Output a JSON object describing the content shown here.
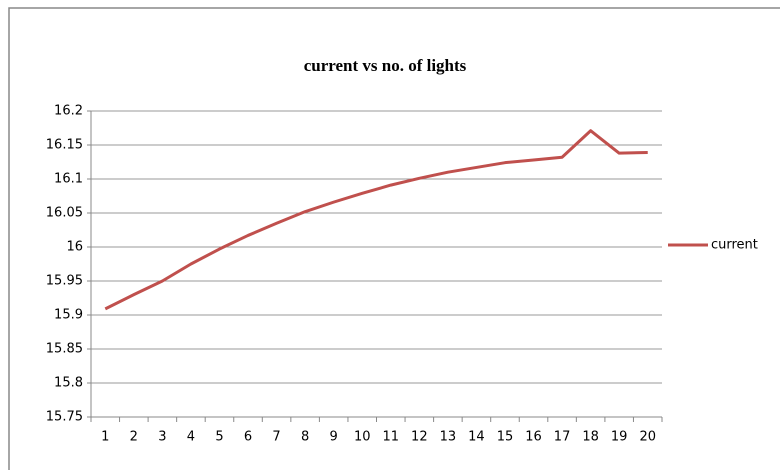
{
  "chart_data": {
    "type": "line",
    "title": "current vs no. of lights",
    "categories": [
      "1",
      "2",
      "3",
      "4",
      "5",
      "6",
      "7",
      "8",
      "9",
      "10",
      "11",
      "12",
      "13",
      "14",
      "15",
      "16",
      "17",
      "18",
      "19",
      "20"
    ],
    "series": [
      {
        "name": "current",
        "color": "#c0504d",
        "values": [
          15.909,
          15.93,
          15.95,
          15.975,
          15.997,
          16.017,
          16.035,
          16.052,
          16.066,
          16.079,
          16.091,
          16.101,
          16.11,
          16.117,
          16.124,
          16.128,
          16.132,
          16.171,
          16.138,
          16.139
        ]
      }
    ],
    "ylim": [
      15.75,
      16.2
    ],
    "yticks": [
      15.75,
      15.8,
      15.85,
      15.9,
      15.95,
      16,
      16.05,
      16.1,
      16.15,
      16.2
    ],
    "grid": true,
    "legend": "right"
  }
}
